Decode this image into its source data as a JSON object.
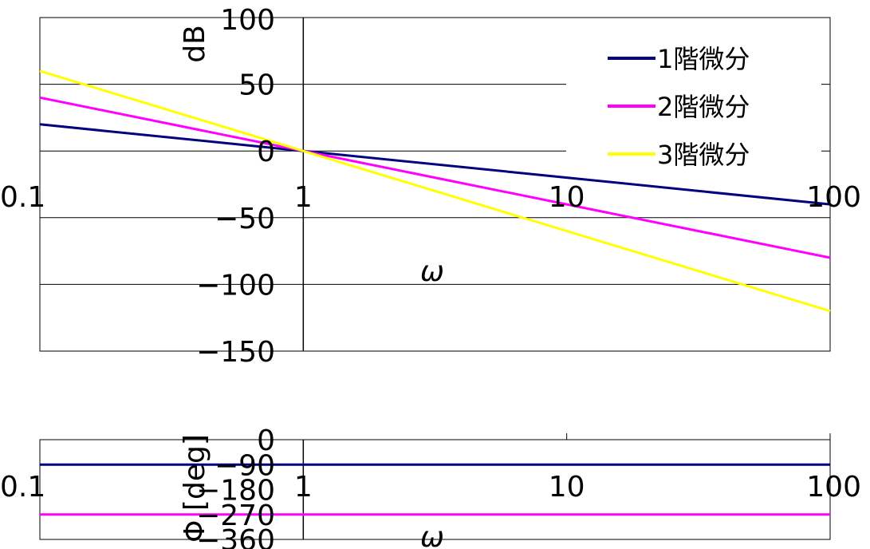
{
  "chart_data": [
    {
      "type": "line",
      "xscale": "log",
      "xlim": [
        0.1,
        100
      ],
      "ylim": [
        -150,
        100
      ],
      "x_ticks": [
        "0.1",
        "1",
        "10",
        "100"
      ],
      "y_ticks": [
        "100",
        "50",
        "0",
        "−50",
        "−100",
        "−150"
      ],
      "ylabel": "dB",
      "xlabel": "ω",
      "legend_position": "top-right",
      "series": [
        {
          "name": "1階微分",
          "color": "#000080",
          "x": [
            0.1,
            1,
            10,
            100
          ],
          "y": [
            20,
            0,
            -20,
            -40
          ]
        },
        {
          "name": "2階微分",
          "color": "#ff00ff",
          "x": [
            0.1,
            1,
            10,
            100
          ],
          "y": [
            40,
            0,
            -40,
            -80
          ]
        },
        {
          "name": "3階微分",
          "color": "#ffff00",
          "x": [
            0.1,
            1,
            10,
            100
          ],
          "y": [
            60,
            0,
            -60,
            -120
          ]
        }
      ]
    },
    {
      "type": "line",
      "xscale": "log",
      "xlim": [
        0.1,
        100
      ],
      "ylim": [
        -360,
        0
      ],
      "x_ticks": [
        "0.1",
        "1",
        "10",
        "100"
      ],
      "y_ticks": [
        "0",
        "−90",
        "−180",
        "−270",
        "−360"
      ],
      "ylabel": "Φ [deg]",
      "xlabel": "ω",
      "series": [
        {
          "color": "#000080",
          "x": [
            0.1,
            100
          ],
          "y": [
            -90,
            -90
          ]
        },
        {
          "color": "#ff00ff",
          "x": [
            0.1,
            100
          ],
          "y": [
            -270,
            -270
          ]
        }
      ]
    }
  ]
}
